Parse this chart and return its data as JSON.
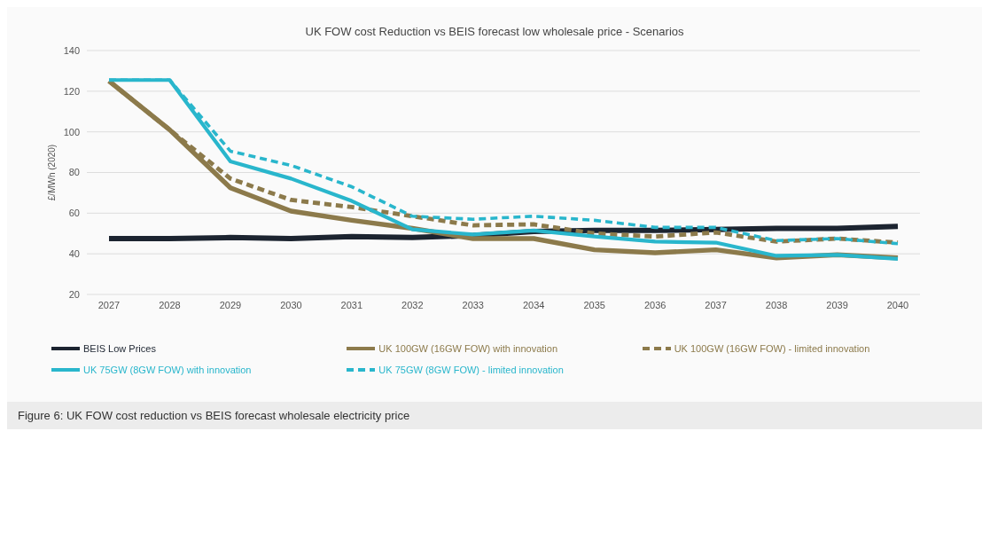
{
  "chart_data": {
    "type": "line",
    "title": "UK FOW cost Reduction vs BEIS forecast low wholesale price - Scenarios",
    "ylabel": "£/MWh (2020)",
    "categories": [
      "2027",
      "2028",
      "2029",
      "2030",
      "2031",
      "2032",
      "2033",
      "2034",
      "2035",
      "2036",
      "2037",
      "2038",
      "2039",
      "2040"
    ],
    "ylim": [
      20,
      140
    ],
    "yticks": [
      20,
      40,
      60,
      80,
      100,
      120,
      140
    ],
    "grid": "y",
    "legend": "bottom",
    "marker": "none",
    "series": [
      {
        "name": "BEIS Low Prices",
        "color": "#1c2430",
        "line_style": "solid",
        "values": [
          47.5,
          47.5,
          48,
          47.5,
          48.5,
          48,
          49,
          51,
          51.5,
          51.5,
          52,
          52.5,
          52.5,
          53.5
        ]
      },
      {
        "name": "UK 100GW (16GW FOW) with innovation",
        "color": "#8c7a4b",
        "line_style": "solid",
        "values": [
          125,
          101,
          72.5,
          61,
          56.5,
          52.5,
          47.5,
          47.5,
          42,
          40.5,
          42,
          38,
          39.5,
          38
        ]
      },
      {
        "name": "UK 100GW (16GW FOW) - limited innovation",
        "color": "#8c7a4b",
        "line_style": "dashed",
        "values": [
          125,
          101,
          77,
          66.5,
          63,
          58.5,
          54,
          54.5,
          50,
          48.5,
          50.5,
          46,
          47.5,
          45.5
        ]
      },
      {
        "name": "UK 75GW (8GW FOW) with innovation",
        "color": "#29b6cc",
        "line_style": "solid",
        "values": [
          125.5,
          125.5,
          85.5,
          77,
          66,
          52,
          49.5,
          51.5,
          48.5,
          46,
          45.5,
          39,
          39.5,
          37.5
        ]
      },
      {
        "name": "UK 75GW (8GW FOW) - limited innovation",
        "color": "#29b6cc",
        "line_style": "dashed",
        "values": [
          125.5,
          125.5,
          90.5,
          83.5,
          73,
          58.5,
          57,
          58.5,
          56.5,
          53,
          53,
          46.5,
          47.5,
          45
        ]
      }
    ],
    "annotations": [
      "Figure 6: UK FOW cost reduction vs BEIS forecast wholesale electricity price"
    ]
  }
}
